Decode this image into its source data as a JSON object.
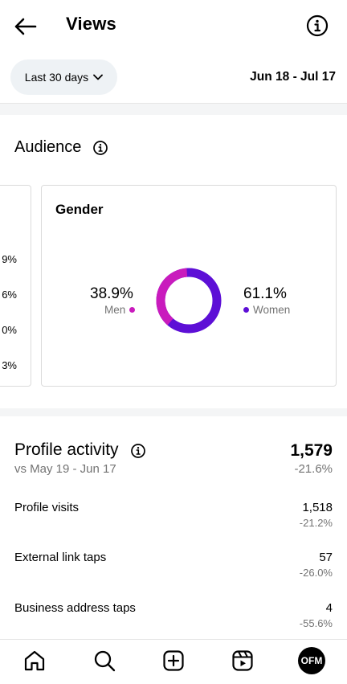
{
  "header": {
    "title": "Views",
    "back_icon": "arrow-left-icon",
    "info_icon": "info-circle-icon"
  },
  "filter": {
    "range_label": "Last 30 days",
    "dates": "Jun 18 - Jul 17"
  },
  "audience": {
    "title": "Audience",
    "prev_card_percentages": [
      "9%",
      "6%",
      "0%",
      "3%"
    ],
    "gender": {
      "title": "Gender",
      "men": {
        "pct": "38.9%",
        "label": "Men",
        "value": 38.9,
        "color": "#c91bbd"
      },
      "women": {
        "pct": "61.1%",
        "label": "Women",
        "value": 61.1,
        "color": "#5d0fd6"
      }
    }
  },
  "profile_activity": {
    "title": "Profile activity",
    "comparison": "vs May 19 - Jun 17",
    "total": "1,579",
    "total_change": "-21.6%",
    "rows": [
      {
        "label": "Profile visits",
        "value": "1,518",
        "change": "-21.2%"
      },
      {
        "label": "External link taps",
        "value": "57",
        "change": "-26.0%"
      },
      {
        "label": "Business address taps",
        "value": "4",
        "change": "-55.6%"
      }
    ]
  },
  "nav": {
    "items": [
      "home-icon",
      "search-icon",
      "create-icon",
      "reels-icon"
    ],
    "avatar_text": "OFM"
  }
}
